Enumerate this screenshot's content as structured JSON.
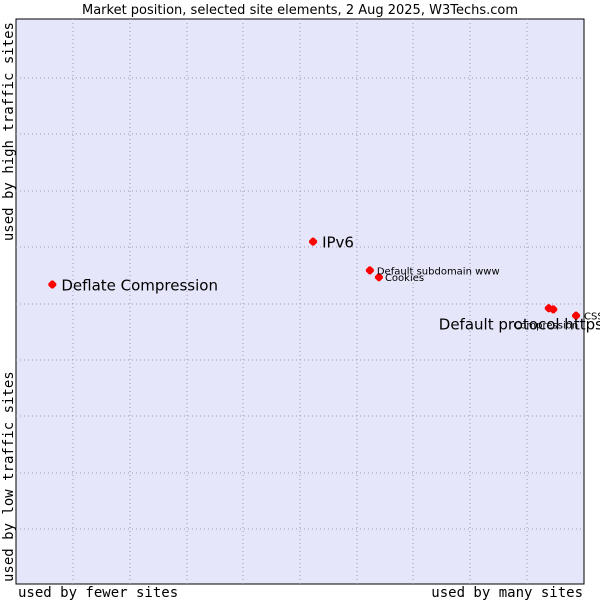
{
  "chart_data": {
    "type": "scatter",
    "title": "Market position, selected site elements, 2 Aug 2025, W3Techs.com",
    "xlabel_left": "used by fewer sites",
    "xlabel_right": "used by many sites",
    "ylabel_top": "used by high traffic sites",
    "ylabel_bottom": "used by low traffic sites",
    "grid": true,
    "colors": {
      "plot_background": "#e6e6fa",
      "point": "#ff0000",
      "grid": "#9a9ab4"
    },
    "points": [
      {
        "label": "Deflate Compression",
        "x": 0.064,
        "y": 0.53,
        "label_size": "large"
      },
      {
        "label": "IPv6",
        "x": 0.523,
        "y": 0.606,
        "label_size": "large"
      },
      {
        "label": "Default subdomain www",
        "x": 0.623,
        "y": 0.555,
        "label_size": "small"
      },
      {
        "label": "Cookies",
        "x": 0.639,
        "y": 0.543,
        "label_size": "small"
      },
      {
        "label": "Default protocol https",
        "x": 0.938,
        "y": 0.488,
        "label_size": "large"
      },
      {
        "label": "Compression",
        "x": 0.946,
        "y": 0.486,
        "label_size": "small"
      },
      {
        "label": "CSS",
        "x": 0.986,
        "y": 0.475,
        "label_size": "small"
      }
    ]
  }
}
